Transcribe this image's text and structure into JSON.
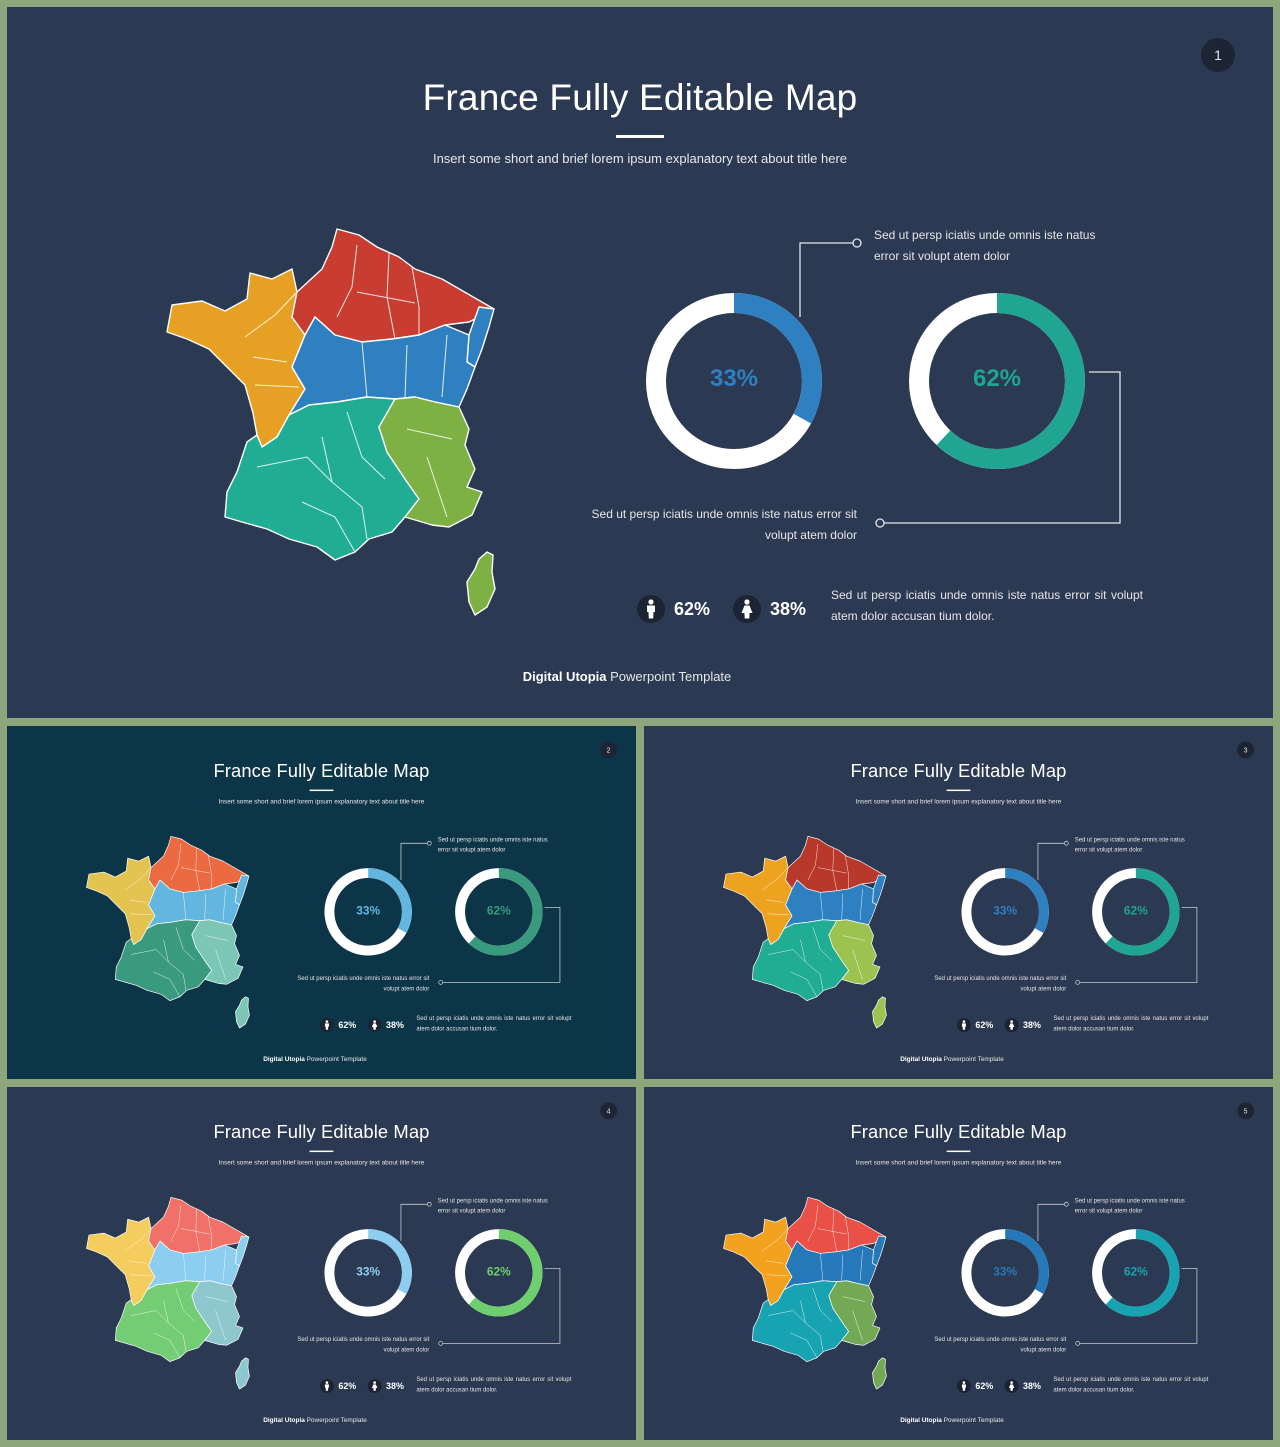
{
  "slides": [
    {
      "number": "1",
      "theme": {
        "bg": "#2c3952",
        "donut1": "#2f80c0",
        "donut2": "#1fa592",
        "regions": {
          "nw": "#e6a024",
          "n": "#c83c32",
          "c": "#2f80c0",
          "s": "#20ad93",
          "se": "#7db143",
          "cor": "#7db143"
        }
      }
    },
    {
      "number": "2",
      "theme": {
        "bg": "#0d3548",
        "donut1": "#63b6df",
        "donut2": "#3a9a7e",
        "regions": {
          "nw": "#e3c450",
          "n": "#ec6a41",
          "c": "#63b6df",
          "s": "#3a9a7e",
          "se": "#7cc6b6",
          "cor": "#7cc6b6"
        }
      }
    },
    {
      "number": "3",
      "theme": {
        "bg": "#2c3952",
        "donut1": "#2f80c0",
        "donut2": "#1fa592",
        "regions": {
          "nw": "#eea320",
          "n": "#b8392c",
          "c": "#2f80c0",
          "s": "#20ad93",
          "se": "#9cc350",
          "cor": "#9cc350"
        }
      }
    },
    {
      "number": "4",
      "theme": {
        "bg": "#2c3952",
        "donut1": "#8ccdf0",
        "donut2": "#6fcf6f",
        "regions": {
          "nw": "#f5cc5e",
          "n": "#f07168",
          "c": "#8ccdf0",
          "s": "#74cc74",
          "se": "#8ec8ce",
          "cor": "#8ec8ce"
        }
      }
    },
    {
      "number": "5",
      "theme": {
        "bg": "#2c3952",
        "donut1": "#2679b9",
        "donut2": "#18a3b2",
        "regions": {
          "nw": "#f2a21e",
          "n": "#e85048",
          "c": "#2679b9",
          "s": "#18a3b2",
          "se": "#73a955",
          "cor": "#73a955"
        }
      }
    }
  ],
  "content": {
    "title": "France Fully Editable Map",
    "subtitle": "Insert some short and brief lorem ipsum explanatory text about title here",
    "donut1": {
      "label": "33%",
      "value": 33
    },
    "donut2": {
      "label": "62%",
      "value": 62
    },
    "callout1": "Sed ut persp  iciatis  unde  omnis  iste natus error  sit volupt atem dolor",
    "callout2": "Sed ut persp  iciatis  unde  omnis  iste natus error  sit volupt atem dolor",
    "stat_male": "62%",
    "stat_female": "38%",
    "stat_desc": "Sed  ut  persp  iciatis  unde  omnis  iste  natus  error  sit  volupt atem  dolor accusan  tium  dolor.",
    "footer_brand": "Digital Utopia",
    "footer_text": " Powerpoint Template",
    "icons": {
      "male": "male-icon",
      "female": "female-icon"
    }
  }
}
